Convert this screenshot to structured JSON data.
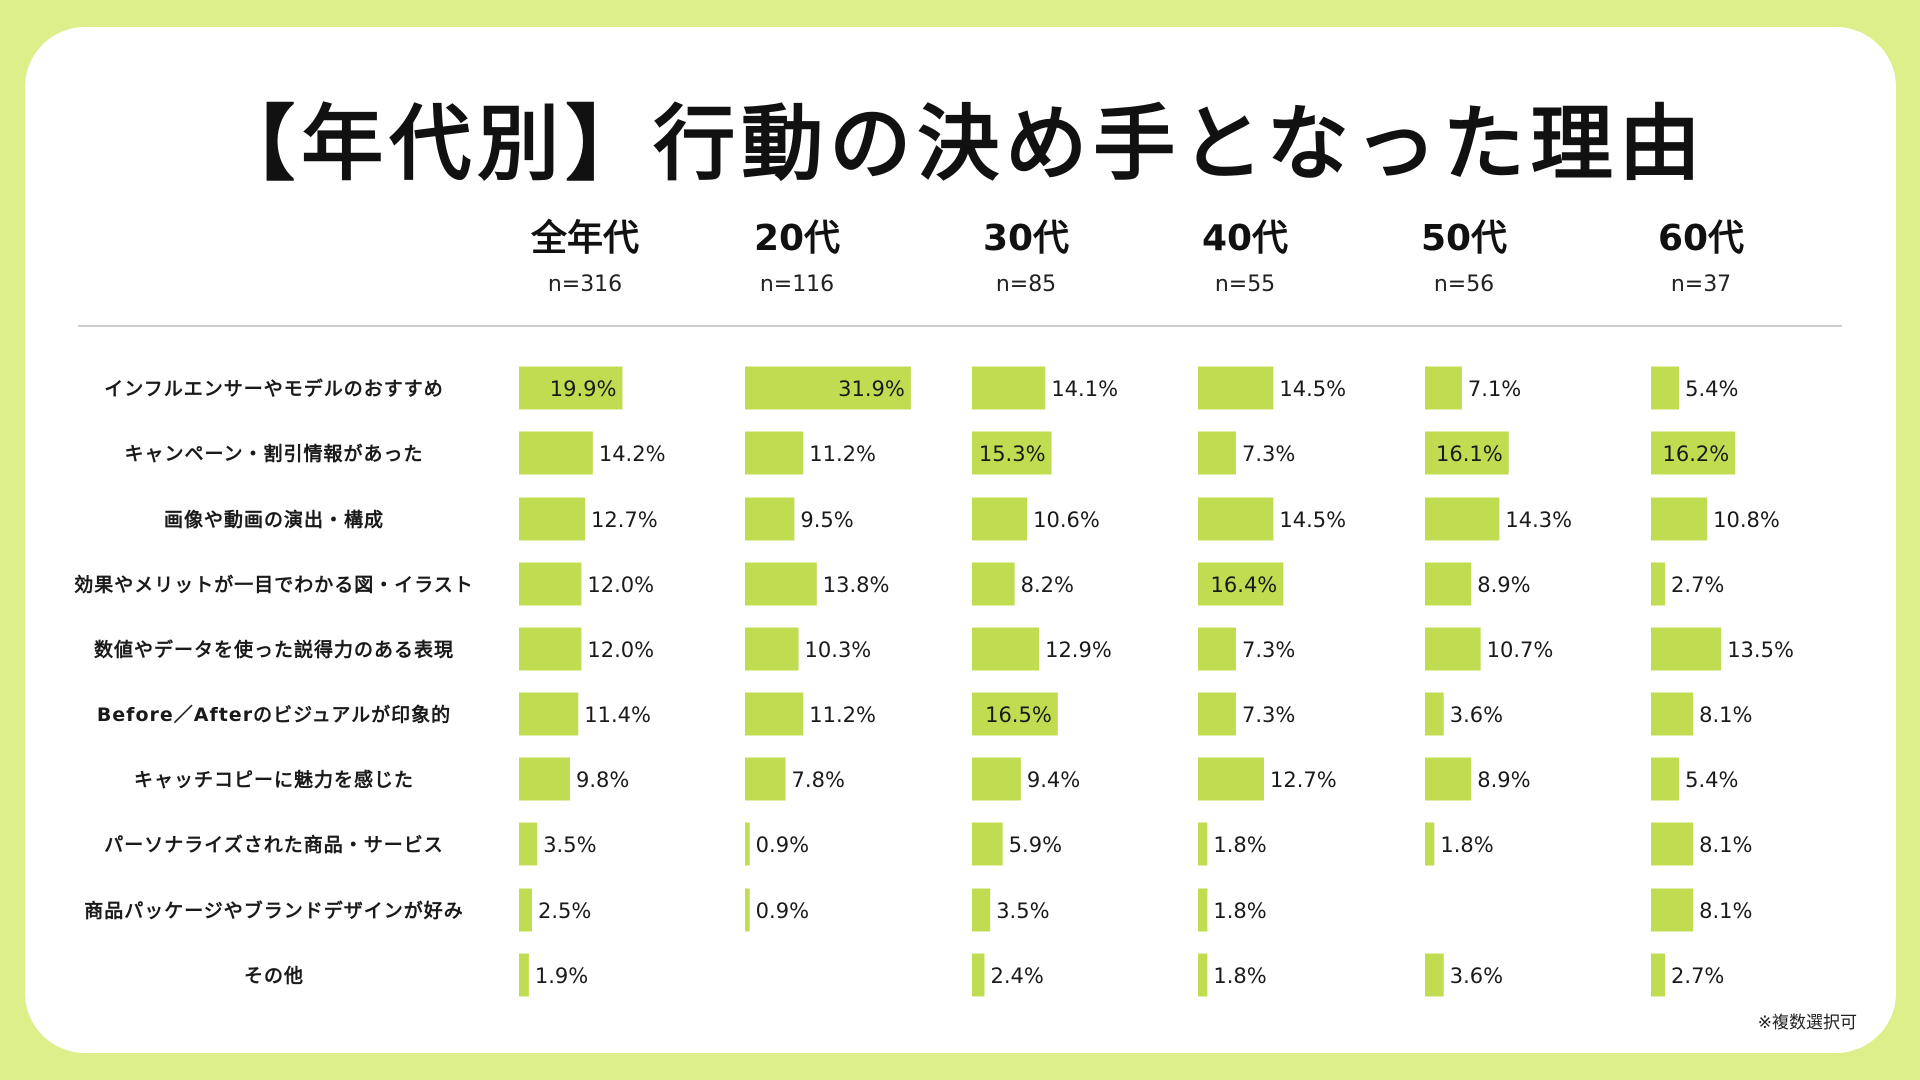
{
  "title": "【年代別】行動の決め手となった理由",
  "note": "※複数選択可",
  "colors": {
    "bar": "#c0dd52",
    "background": "#dcef8a",
    "card": "#ffffff",
    "text": "#111111"
  },
  "chart_data": {
    "type": "bar",
    "orientation": "horizontal",
    "unit": "%",
    "categories": [
      "インフルエンサーやモデルのおすすめ",
      "キャンペーン・割引情報があった",
      "画像や動画の演出・構成",
      "効果やメリットが一目でわかる図・イラスト",
      "数値やデータを使った説得力のある表現",
      "Before／Afterのビジュアルが印象的",
      "キャッチコピーに魅力を感じた",
      "パーソナライズされた商品・サービス",
      "商品パッケージやブランドデザインが好み",
      "その他"
    ],
    "series": [
      {
        "name": "全年代",
        "n": "n=316",
        "values": [
          19.9,
          14.2,
          12.7,
          12.0,
          12.0,
          11.4,
          9.8,
          3.5,
          2.5,
          1.9
        ]
      },
      {
        "name": "20代",
        "n": "n=116",
        "values": [
          31.9,
          11.2,
          9.5,
          13.8,
          10.3,
          11.2,
          7.8,
          0.9,
          0.9,
          null
        ]
      },
      {
        "name": "30代",
        "n": "n=85",
        "values": [
          14.1,
          15.3,
          10.6,
          8.2,
          12.9,
          16.5,
          9.4,
          5.9,
          3.5,
          2.4
        ]
      },
      {
        "name": "40代",
        "n": "n=55",
        "values": [
          14.5,
          7.3,
          14.5,
          16.4,
          7.3,
          7.3,
          12.7,
          1.8,
          1.8,
          1.8
        ]
      },
      {
        "name": "50代",
        "n": "n=56",
        "values": [
          7.1,
          16.1,
          14.3,
          8.9,
          10.7,
          3.6,
          8.9,
          1.8,
          null,
          3.6
        ]
      },
      {
        "name": "60代",
        "n": "n=37",
        "values": [
          5.4,
          16.2,
          10.8,
          2.7,
          13.5,
          8.1,
          5.4,
          8.1,
          8.1,
          2.7
        ]
      }
    ]
  }
}
